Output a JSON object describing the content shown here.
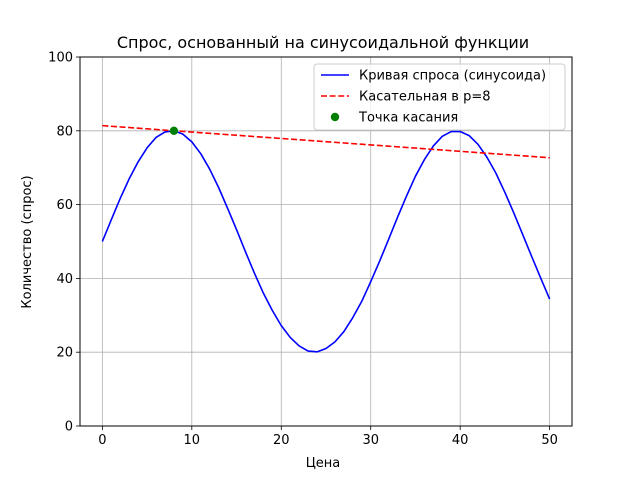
{
  "chart_data": {
    "type": "line",
    "title": "Спрос, основанный на синусоидальной функции",
    "xlabel": "Цена",
    "ylabel": "Количество (спрос)",
    "xlim": [
      -2.5,
      52.5
    ],
    "ylim": [
      0,
      100
    ],
    "xticks": [
      0,
      10,
      20,
      30,
      40,
      50
    ],
    "yticks": [
      0,
      20,
      40,
      60,
      80,
      100
    ],
    "grid": true,
    "legend_position": "top-right",
    "series": [
      {
        "name": "Кривая спроса (синусоида)",
        "kind": "line",
        "color": "#0000ff",
        "style": "solid",
        "x": [
          0,
          1,
          2,
          3,
          4,
          5,
          6,
          7,
          8,
          9,
          10,
          11,
          12,
          13,
          14,
          15,
          16,
          17,
          18,
          19,
          20,
          21,
          22,
          23,
          24,
          25,
          26,
          27,
          28,
          29,
          30,
          31,
          32,
          33,
          34,
          35,
          36,
          37,
          38,
          39,
          40,
          41,
          42,
          43,
          44,
          45,
          46,
          47,
          48,
          49,
          50
        ],
        "y": [
          50,
          55.9,
          61.7,
          67.0,
          71.6,
          75.4,
          78.2,
          79.7,
          80.0,
          79.1,
          77.0,
          73.8,
          69.6,
          64.6,
          59.0,
          53.2,
          47.2,
          41.4,
          36.0,
          31.3,
          27.2,
          24.0,
          21.7,
          20.3,
          20.1,
          21.0,
          22.8,
          25.6,
          29.4,
          33.8,
          39.1,
          44.7,
          50.6,
          56.6,
          62.3,
          67.7,
          72.2,
          75.9,
          78.5,
          79.8,
          79.8,
          78.7,
          76.3,
          72.8,
          68.5,
          63.3,
          57.7,
          51.8,
          45.9,
          40.1,
          34.4
        ]
      },
      {
        "name": "Касательная в p=8",
        "kind": "line",
        "color": "#ff0000",
        "style": "dashed",
        "x": [
          0,
          50
        ],
        "y": [
          81.4,
          72.7
        ]
      },
      {
        "name": "Точка касания",
        "kind": "scatter",
        "color": "#008000",
        "x": [
          8
        ],
        "y": [
          80
        ]
      }
    ]
  }
}
